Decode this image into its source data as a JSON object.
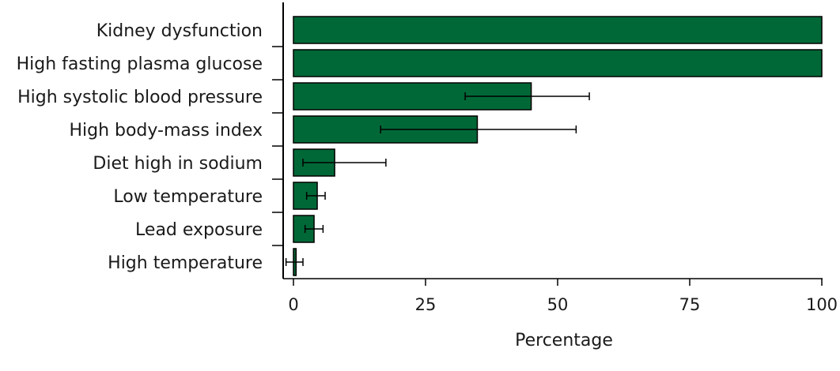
{
  "chart_data": {
    "type": "bar",
    "orientation": "horizontal",
    "categories": [
      "Kidney dysfunction",
      "High fasting plasma glucose",
      "High systolic blood pressure",
      "High body-mass index",
      "Diet high in sodium",
      "Low temperature",
      "Lead exposure",
      "High temperature"
    ],
    "values": [
      100,
      100,
      45,
      34.8,
      7.8,
      4.5,
      3.9,
      0.5
    ],
    "error_low": [
      null,
      null,
      32.5,
      16.5,
      1.8,
      2.5,
      2.2,
      -1.4
    ],
    "error_high": [
      null,
      null,
      56,
      53.5,
      17.5,
      6,
      5.6,
      1.8
    ],
    "xlabel": "Percentage",
    "ylabel": "",
    "title": "",
    "xlim": [
      -2,
      100
    ],
    "xticks": [
      0,
      25,
      50,
      75,
      100
    ],
    "xtick_labels": [
      "0",
      "25",
      "50",
      "75",
      "100"
    ],
    "grid": false,
    "bar_color": "#006837"
  }
}
